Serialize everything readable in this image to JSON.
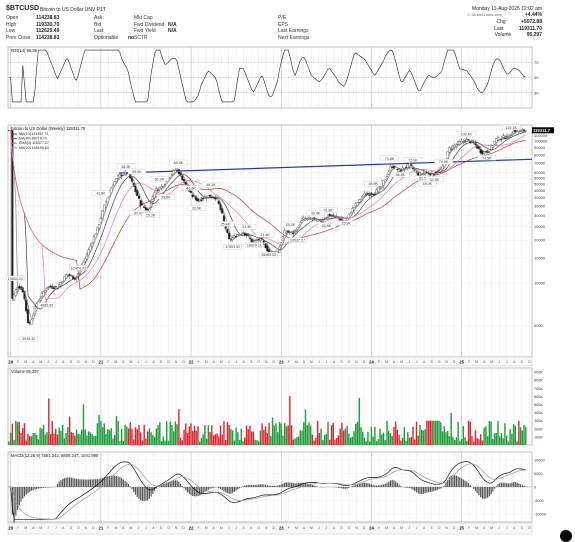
{
  "header": {
    "symbol": "$BTCUSD",
    "description": "Bitcoin to US Dollar  UNV P1T",
    "date": "Monday  11-Aug-2025  12:02 am",
    "left": [
      {
        "k": "Open",
        "v": "114238.83"
      },
      {
        "k": "High",
        "v": "119330.70"
      },
      {
        "k": "Low",
        "v": "112629.49"
      },
      {
        "k": "Prev Close",
        "v": "114238.83"
      }
    ],
    "mid": [
      {
        "k": "Ask",
        "v": ""
      },
      {
        "k": "Bid",
        "v": ""
      },
      {
        "k": "Last",
        "v": ""
      },
      {
        "k": "Optionable",
        "v": "no"
      }
    ],
    "mid2": [
      {
        "k": "Mkt Cap",
        "v": ""
      },
      {
        "k": "Fwd Dividend",
        "v": "N/A"
      },
      {
        "k": "Fwd Yield",
        "v": "N/A"
      },
      {
        "k": "SCTR",
        "v": ""
      }
    ],
    "mid3": [
      {
        "k": "P/E",
        "v": ""
      },
      {
        "k": "EPS",
        "v": ""
      },
      {
        "k": "Last Earnings",
        "v": ""
      },
      {
        "k": "Next Earnings",
        "v": ""
      }
    ],
    "right": [
      {
        "k": "Chg",
        "v": "+5072.88"
      },
      {
        "k": "Last",
        "v": "119311.70"
      },
      {
        "k": "Volume",
        "v": "95,297"
      }
    ],
    "chg_pct": "+4.44%",
    "watermark": "© StockCharts.com"
  },
  "rsi_panel": {
    "label": "RSI(14) 65.96",
    "ticks": [
      "70",
      "50",
      "30"
    ]
  },
  "price_panel": {
    "label": "Bitcoin to US Dollar (Weekly) 119311.70",
    "legend": [
      {
        "text": "MA(10) 111352.72",
        "color": "#444444"
      },
      {
        "text": "MA(40) 89716.74",
        "color": "#c0392b"
      },
      {
        "text": "EMA(4) 116377.27",
        "color": "#888888"
      },
      {
        "text": "MA(20) 105195.63",
        "color": "#e377c2"
      }
    ],
    "yticks": [
      "120000",
      "110000",
      "100000",
      "90000",
      "80000",
      "70000",
      "60000",
      "55000",
      "50000",
      "45000",
      "40000",
      "35000",
      "30000",
      "25000",
      "20000",
      "15000",
      "10000",
      "5000"
    ],
    "last_price": "119311.7",
    "price_labels": [
      {
        "t": "10504.24",
        "x": 2020.05,
        "y": 10504
      },
      {
        "t": "3946.32",
        "x": 2020.2,
        "y": 3946
      },
      {
        "t": "4865.69",
        "x": 2020.4,
        "y": 6800
      },
      {
        "t": "12474.73",
        "x": 2020.75,
        "y": 12474
      },
      {
        "t": "41.9K",
        "x": 2021.0,
        "y": 41900
      },
      {
        "t": "64.9K",
        "x": 2021.28,
        "y": 64900
      },
      {
        "t": "30.4K",
        "x": 2021.42,
        "y": 30400
      },
      {
        "t": "59.6K",
        "x": 2021.4,
        "y": 59600
      },
      {
        "t": "29.3K",
        "x": 2021.55,
        "y": 29300
      },
      {
        "t": "52.9K",
        "x": 2021.65,
        "y": 52900
      },
      {
        "t": "39.5K",
        "x": 2021.72,
        "y": 39500
      },
      {
        "t": "69.0K",
        "x": 2021.86,
        "y": 69000
      },
      {
        "t": "45.6K",
        "x": 2022.0,
        "y": 45600
      },
      {
        "t": "48.2K",
        "x": 2022.22,
        "y": 48200
      },
      {
        "t": "33.0K",
        "x": 2022.06,
        "y": 33000
      },
      {
        "t": "25.4K",
        "x": 2022.38,
        "y": 25400
      },
      {
        "t": "24.3K",
        "x": 2022.62,
        "y": 24300
      },
      {
        "t": "17593.92",
        "x": 2022.46,
        "y": 17593
      },
      {
        "t": "18010.11",
        "x": 2022.7,
        "y": 18010
      },
      {
        "t": "21.4K",
        "x": 2022.82,
        "y": 21400
      },
      {
        "t": "15460.00",
        "x": 2022.86,
        "y": 15460
      },
      {
        "t": "25.2K",
        "x": 2023.1,
        "y": 25200
      },
      {
        "t": "19537.27",
        "x": 2023.18,
        "y": 19537
      },
      {
        "t": "31.8K",
        "x": 2023.52,
        "y": 31800
      },
      {
        "t": "30.4K",
        "x": 2023.38,
        "y": 30400
      },
      {
        "t": "24.8K",
        "x": 2023.5,
        "y": 24800
      },
      {
        "t": "25.8K",
        "x": 2023.72,
        "y": 25800
      },
      {
        "t": "48.9K",
        "x": 2024.02,
        "y": 48900
      },
      {
        "t": "73.8K",
        "x": 2024.2,
        "y": 73800
      },
      {
        "t": "56.6K",
        "x": 2024.32,
        "y": 56600
      },
      {
        "t": "72.0K",
        "x": 2024.46,
        "y": 72000
      },
      {
        "t": "53.5K",
        "x": 2024.58,
        "y": 53500
      },
      {
        "t": "49.0K",
        "x": 2024.62,
        "y": 49000
      },
      {
        "t": "70.0K",
        "x": 2024.8,
        "y": 70000
      },
      {
        "t": "52.5K",
        "x": 2024.7,
        "y": 52500
      },
      {
        "t": "109.4K",
        "x": 2025.05,
        "y": 109400
      },
      {
        "t": "74.5K",
        "x": 2025.28,
        "y": 74500
      },
      {
        "t": "122.1K",
        "x": 2025.55,
        "y": 122100
      }
    ]
  },
  "volume_panel": {
    "label": "Volume 95,297",
    "ticks": [
      "900K",
      "800K",
      "700K",
      "600K",
      "500K",
      "400K",
      "300K",
      "200K",
      "100K"
    ],
    "last": "95,297"
  },
  "macd_panel": {
    "label": "MACD(12,26,9) 7851.242, 6809.247, 1041.995",
    "ticks": [
      "10000",
      "5000",
      "0",
      "-5000",
      "-10000"
    ]
  },
  "x_axis": {
    "years": [
      {
        "label": "20",
        "x": 2020.0
      },
      {
        "label": "21",
        "x": 2021.0
      },
      {
        "label": "22",
        "x": 2022.0
      },
      {
        "label": "23",
        "x": 2023.0
      },
      {
        "label": "24",
        "x": 2024.0
      },
      {
        "label": "25",
        "x": 2025.0
      }
    ],
    "months": [
      "F",
      "M",
      "A",
      "M",
      "J",
      "J",
      "A",
      "S",
      "O",
      "N",
      "D"
    ]
  },
  "chart_data": {
    "type": "line",
    "title": "Bitcoin to US Dollar (Weekly) 119311.70",
    "xlabel": "",
    "ylabel": "",
    "log_scale": true,
    "ylim": [
      3000,
      130000
    ],
    "trendline": {
      "from": [
        2021.2,
        59600
      ],
      "to": [
        2025.75,
        74500
      ],
      "color": "#2c3aa8"
    },
    "series": [
      {
        "name": "$BTCUSD",
        "points": [
          [
            2020.0,
            7200
          ],
          [
            2020.08,
            9600
          ],
          [
            2020.14,
            8700
          ],
          [
            2020.2,
            4900
          ],
          [
            2020.28,
            7000
          ],
          [
            2020.4,
            9400
          ],
          [
            2020.52,
            9300
          ],
          [
            2020.62,
            11500
          ],
          [
            2020.72,
            10700
          ],
          [
            2020.84,
            15500
          ],
          [
            2020.96,
            24000
          ],
          [
            2021.04,
            35000
          ],
          [
            2021.12,
            48000
          ],
          [
            2021.2,
            57000
          ],
          [
            2021.3,
            60000
          ],
          [
            2021.38,
            45000
          ],
          [
            2021.44,
            36000
          ],
          [
            2021.52,
            32000
          ],
          [
            2021.6,
            45000
          ],
          [
            2021.68,
            48000
          ],
          [
            2021.76,
            56000
          ],
          [
            2021.84,
            64000
          ],
          [
            2021.92,
            52000
          ],
          [
            2022.0,
            42000
          ],
          [
            2022.08,
            38000
          ],
          [
            2022.18,
            41000
          ],
          [
            2022.28,
            40000
          ],
          [
            2022.34,
            31000
          ],
          [
            2022.42,
            20000
          ],
          [
            2022.5,
            21500
          ],
          [
            2022.58,
            23000
          ],
          [
            2022.68,
            19500
          ],
          [
            2022.78,
            20500
          ],
          [
            2022.86,
            16500
          ],
          [
            2022.96,
            16600
          ],
          [
            2023.04,
            23000
          ],
          [
            2023.14,
            22500
          ],
          [
            2023.22,
            28000
          ],
          [
            2023.34,
            28500
          ],
          [
            2023.42,
            27000
          ],
          [
            2023.52,
            30000
          ],
          [
            2023.62,
            29000
          ],
          [
            2023.7,
            26500
          ],
          [
            2023.8,
            34000
          ],
          [
            2023.92,
            42000
          ],
          [
            2024.04,
            43000
          ],
          [
            2024.14,
            52000
          ],
          [
            2024.22,
            67000
          ],
          [
            2024.32,
            62000
          ],
          [
            2024.42,
            68000
          ],
          [
            2024.52,
            58000
          ],
          [
            2024.6,
            60000
          ],
          [
            2024.68,
            59000
          ],
          [
            2024.78,
            63000
          ],
          [
            2024.86,
            88000
          ],
          [
            2024.96,
            96000
          ],
          [
            2025.06,
            102000
          ],
          [
            2025.14,
            96000
          ],
          [
            2025.22,
            83000
          ],
          [
            2025.3,
            85000
          ],
          [
            2025.38,
            103000
          ],
          [
            2025.46,
            106000
          ],
          [
            2025.52,
            108000
          ],
          [
            2025.58,
            118000
          ],
          [
            2025.64,
            117000
          ],
          [
            2025.72,
            119311
          ]
        ]
      }
    ]
  }
}
